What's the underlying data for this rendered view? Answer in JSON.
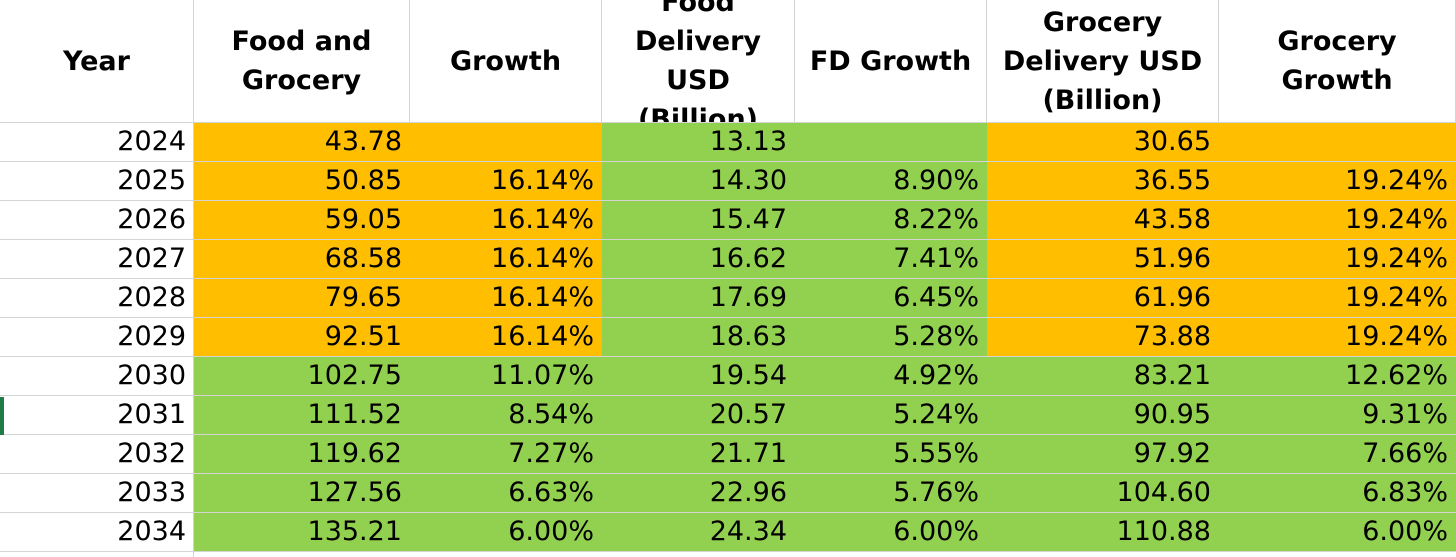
{
  "colors": {
    "orange": "#FFBF00",
    "green": "#92D050",
    "white": "#FFFFFF",
    "grid": "#D4D4D4",
    "row_marker": "#1E7C44"
  },
  "headers": [
    "Year",
    "Food and\nGrocery",
    "Growth",
    "Food\nDelivery USD\n(Billion)",
    "FD Growth",
    "Grocery\nDelivery USD\n(Billion)",
    "Grocery Growth"
  ],
  "rows": [
    {
      "year": "2024",
      "fg": "43.78",
      "growth": "",
      "fd": "13.13",
      "fd_growth": "",
      "gd": "30.65",
      "gd_growth": ""
    },
    {
      "year": "2025",
      "fg": "50.85",
      "growth": "16.14%",
      "fd": "14.30",
      "fd_growth": "8.90%",
      "gd": "36.55",
      "gd_growth": "19.24%"
    },
    {
      "year": "2026",
      "fg": "59.05",
      "growth": "16.14%",
      "fd": "15.47",
      "fd_growth": "8.22%",
      "gd": "43.58",
      "gd_growth": "19.24%"
    },
    {
      "year": "2027",
      "fg": "68.58",
      "growth": "16.14%",
      "fd": "16.62",
      "fd_growth": "7.41%",
      "gd": "51.96",
      "gd_growth": "19.24%"
    },
    {
      "year": "2028",
      "fg": "79.65",
      "growth": "16.14%",
      "fd": "17.69",
      "fd_growth": "6.45%",
      "gd": "61.96",
      "gd_growth": "19.24%"
    },
    {
      "year": "2029",
      "fg": "92.51",
      "growth": "16.14%",
      "fd": "18.63",
      "fd_growth": "5.28%",
      "gd": "73.88",
      "gd_growth": "19.24%"
    },
    {
      "year": "2030",
      "fg": "102.75",
      "growth": "11.07%",
      "fd": "19.54",
      "fd_growth": "4.92%",
      "gd": "83.21",
      "gd_growth": "12.62%"
    },
    {
      "year": "2031",
      "fg": "111.52",
      "growth": "8.54%",
      "fd": "20.57",
      "fd_growth": "5.24%",
      "gd": "90.95",
      "gd_growth": "9.31%"
    },
    {
      "year": "2032",
      "fg": "119.62",
      "growth": "7.27%",
      "fd": "21.71",
      "fd_growth": "5.55%",
      "gd": "97.92",
      "gd_growth": "7.66%"
    },
    {
      "year": "2033",
      "fg": "127.56",
      "growth": "6.63%",
      "fd": "22.96",
      "fd_growth": "5.76%",
      "gd": "104.60",
      "gd_growth": "6.83%"
    },
    {
      "year": "2034",
      "fg": "135.21",
      "growth": "6.00%",
      "fd": "24.34",
      "fd_growth": "6.00%",
      "gd": "110.88",
      "gd_growth": "6.00%"
    }
  ]
}
